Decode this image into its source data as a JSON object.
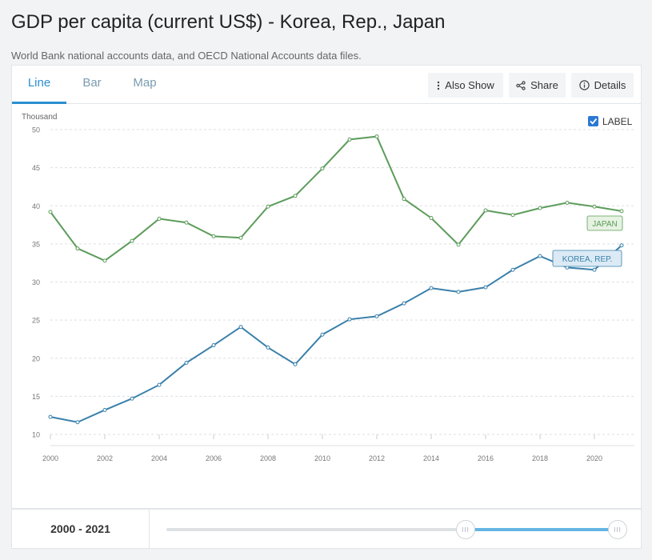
{
  "header": {
    "title": "GDP per capita (current US$) - Korea, Rep., Japan",
    "source": "World Bank national accounts data, and OECD National Accounts data files."
  },
  "tabs": [
    {
      "label": "Line",
      "active": true
    },
    {
      "label": "Bar",
      "active": false
    },
    {
      "label": "Map",
      "active": false
    }
  ],
  "toolbar": {
    "also_show_label": "Also Show",
    "share_label": "Share",
    "details_label": "Details"
  },
  "label_toggle": {
    "label": "LABEL",
    "checked": true
  },
  "footer": {
    "range_start": "2000",
    "range_sep": " - ",
    "range_end": "2021",
    "range_label": "2000 - 2021"
  },
  "chart_data": {
    "type": "line",
    "unit_label": "Thousand",
    "x": [
      2000,
      2001,
      2002,
      2003,
      2004,
      2005,
      2006,
      2007,
      2008,
      2009,
      2010,
      2011,
      2012,
      2013,
      2014,
      2015,
      2016,
      2017,
      2018,
      2019,
      2020,
      2021
    ],
    "xticks": [
      "2000",
      "2002",
      "2004",
      "2006",
      "2008",
      "2010",
      "2012",
      "2014",
      "2016",
      "2018",
      "2020"
    ],
    "yticks": [
      "10",
      "15",
      "20",
      "25",
      "30",
      "35",
      "40",
      "45",
      "50"
    ],
    "ylim": [
      10,
      50
    ],
    "grid": true,
    "series": [
      {
        "name": "JAPAN",
        "color": "#5d9c5b",
        "label_bg": "#e6f2e2",
        "values": [
          39.2,
          34.4,
          32.8,
          35.4,
          38.3,
          37.8,
          36.0,
          35.8,
          39.9,
          41.3,
          44.9,
          48.7,
          49.1,
          40.9,
          38.4,
          34.9,
          39.4,
          38.8,
          39.7,
          40.4,
          39.9,
          39.3
        ]
      },
      {
        "name": "KOREA, REP.",
        "color": "#3a80ab",
        "label_bg": "#dbeaf5",
        "values": [
          12.3,
          11.6,
          13.2,
          14.7,
          16.5,
          19.4,
          21.7,
          24.1,
          21.4,
          19.2,
          23.1,
          25.1,
          25.5,
          27.2,
          29.2,
          28.7,
          29.3,
          31.6,
          33.4,
          31.9,
          31.6,
          34.8
        ]
      }
    ]
  }
}
